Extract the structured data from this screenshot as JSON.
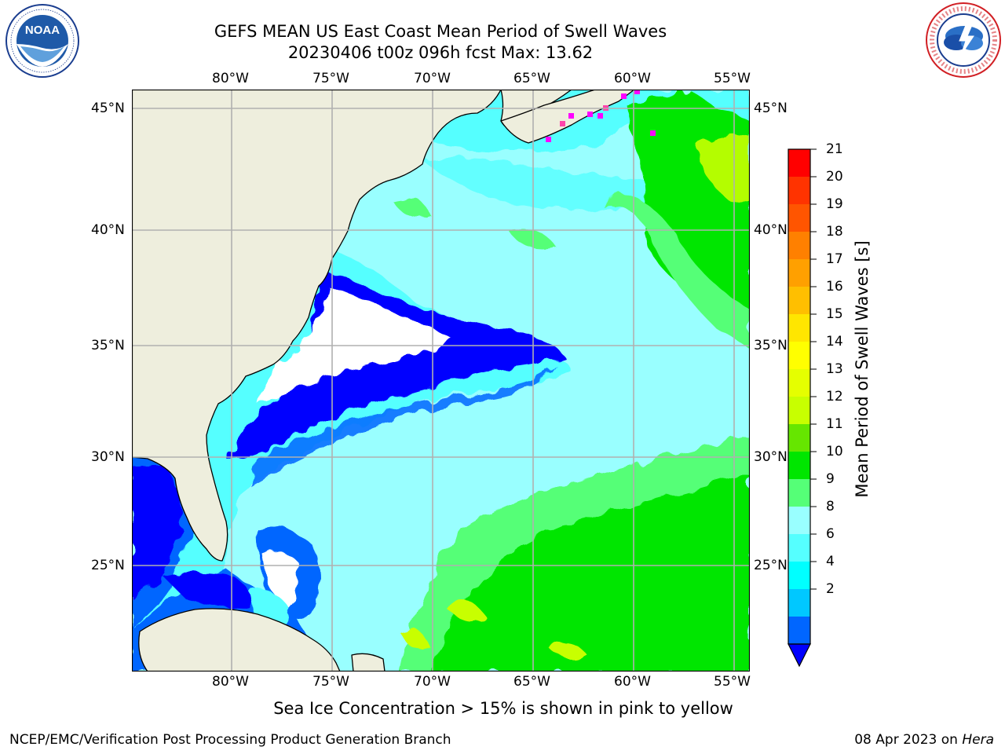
{
  "title": {
    "line1": "GEFS MEAN US East Coast Mean Period of Swell Waves",
    "line2": "20230406 t00z 096h fcst   Max: 13.62"
  },
  "map": {
    "lon_ticks": [
      "80°W",
      "75°W",
      "70°W",
      "65°W",
      "60°W",
      "55°W"
    ],
    "lat_ticks": [
      "45°N",
      "40°N",
      "35°N",
      "30°N",
      "25°N"
    ],
    "land_color": "#eeeedd",
    "grid_color": "#b0b0b0"
  },
  "colorbar": {
    "title": "Mean Period of Swell Waves [s]",
    "labels": [
      "21",
      "20",
      "19",
      "18",
      "17",
      "16",
      "15",
      "14",
      "13",
      "12",
      "11",
      "10",
      "9",
      "8",
      "6",
      "4",
      "2"
    ],
    "colors": [
      "#ff0000",
      "#ff3300",
      "#ff5500",
      "#ff8000",
      "#ffa000",
      "#ffbf00",
      "#ffe600",
      "#ffff00",
      "#e5ff00",
      "#c8ff00",
      "#66e600",
      "#00e600",
      "#55ff77",
      "#99ffff",
      "#55ffff",
      "#00ffff",
      "#00c8ff",
      "#0066ff"
    ],
    "under_color": "#0000ff"
  },
  "legend_note": "Sea Ice Concentration > 15% is shown in pink to yellow",
  "footer": {
    "left": "NCEP/EMC/Verification Post Processing Product Generation Branch",
    "right_prefix": "08 Apr 2023 on ",
    "right_host": "Hera"
  }
}
